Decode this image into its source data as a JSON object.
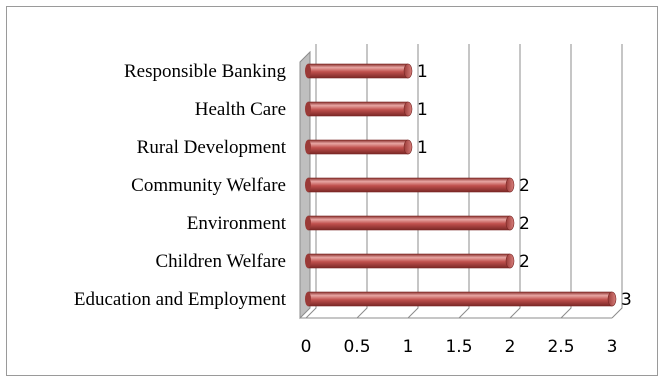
{
  "chart_data": {
    "type": "bar",
    "orientation": "horizontal",
    "style": "3d-cylinder",
    "categories": [
      "Responsible Banking",
      "Health Care",
      "Rural Development",
      "Community Welfare",
      "Environment",
      "Children Welfare",
      "Education and Employment"
    ],
    "values": [
      1,
      1,
      1,
      2,
      2,
      2,
      3
    ],
    "data_labels": [
      "1",
      "1",
      "1",
      "2",
      "2",
      "2",
      "3"
    ],
    "xlim": [
      0,
      3
    ],
    "x_ticks": [
      "0",
      "0.5",
      "1",
      "1.5",
      "2",
      "2.5",
      "3"
    ],
    "grid": true,
    "legend": "none",
    "colors": {
      "bar": "#c0504d",
      "bar_dark": "#8a2f2c",
      "bar_light": "#e8a7a4",
      "grid": "#8c8c8c",
      "wall": "#bfbfbf"
    }
  }
}
